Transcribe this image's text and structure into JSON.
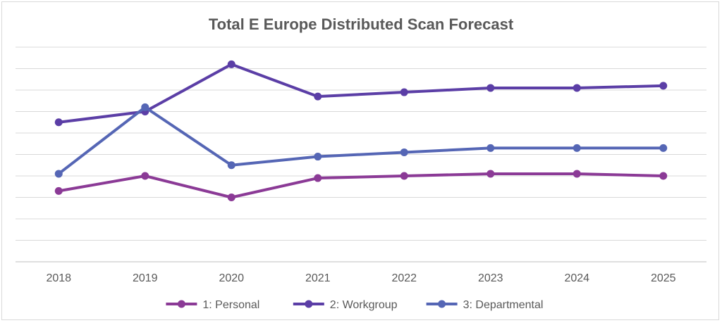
{
  "chart_data": {
    "type": "line",
    "title": "Total E Europe Distributed Scan Forecast",
    "xlabel": "",
    "ylabel": "",
    "categories": [
      "2018",
      "2019",
      "2020",
      "2021",
      "2022",
      "2023",
      "2024",
      "2025"
    ],
    "ylim": [
      0,
      10
    ],
    "y_tick_labels_shown": false,
    "grid": true,
    "legend_position": "bottom",
    "series": [
      {
        "name": "1: Personal",
        "color": "#8b3a96",
        "values": [
          3.3,
          4.0,
          3.0,
          3.9,
          4.0,
          4.1,
          4.1,
          4.0
        ]
      },
      {
        "name": "2: Workgroup",
        "color": "#5b3ea6",
        "values": [
          6.5,
          7.0,
          9.2,
          7.7,
          7.9,
          8.1,
          8.1,
          8.2
        ]
      },
      {
        "name": "3: Departmental",
        "color": "#5566b5",
        "values": [
          4.1,
          7.2,
          4.5,
          4.9,
          5.1,
          5.3,
          5.3,
          5.3
        ]
      }
    ]
  }
}
